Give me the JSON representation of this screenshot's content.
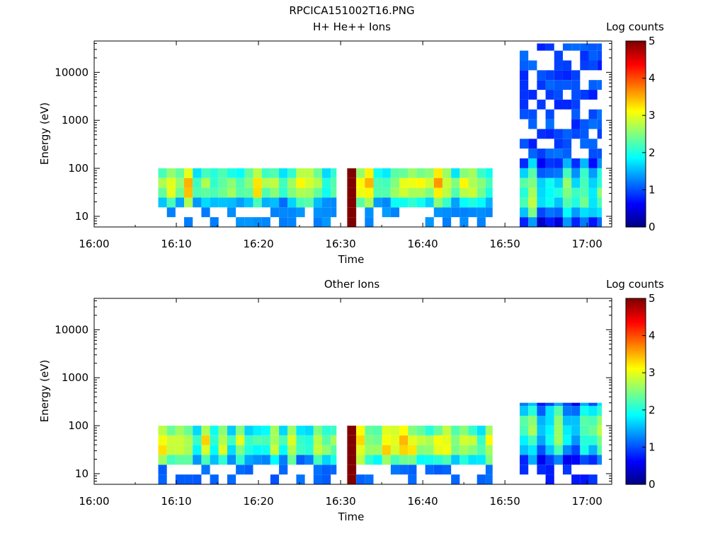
{
  "figure_title": "RPCICA151002T16.PNG",
  "chart_data": [
    {
      "type": "heatmap",
      "title": "H+ He++ Ions",
      "xlabel": "Time",
      "ylabel": "Energy (eV)",
      "x_ticks": [
        "16:00",
        "16:10",
        "16:20",
        "16:30",
        "16:40",
        "16:50",
        "17:00"
      ],
      "x_range_minutes": [
        0,
        63
      ],
      "y_scale": "log",
      "y_ticks": [
        "10",
        "100",
        "1000",
        "10000"
      ],
      "ylim": [
        6,
        45000
      ],
      "colorbar": {
        "label": "Log counts",
        "ticks": [
          "0",
          "1",
          "2",
          "3",
          "4",
          "5"
        ],
        "range": [
          0,
          5
        ],
        "colormap": "jet"
      },
      "segments": [
        {
          "t_start": 7.8,
          "t_end": 29.5,
          "e_low": 6,
          "e_high": 100,
          "e_min_solid": 13,
          "level": 2.8,
          "sparse_levels": 1
        },
        {
          "t_start": 30.8,
          "t_end": 31.9,
          "e_low": 6,
          "e_high": 100,
          "level": 5.0,
          "saturated": true
        },
        {
          "t_start": 31.9,
          "t_end": 48.5,
          "e_low": 6,
          "e_high": 100,
          "e_min_solid": 13,
          "level": 2.9,
          "sparse_levels": 1
        },
        {
          "t_start": 51.8,
          "t_end": 61.8,
          "e_low": 6,
          "e_high": 40000,
          "e_max_dense": 110,
          "level": 2.3,
          "sparse_levels": 0.5
        }
      ]
    },
    {
      "type": "heatmap",
      "title": "Other Ions",
      "xlabel": "Time",
      "ylabel": "Energy (eV)",
      "x_ticks": [
        "16:00",
        "16:10",
        "16:20",
        "16:30",
        "16:40",
        "16:50",
        "17:00"
      ],
      "x_range_minutes": [
        0,
        63
      ],
      "y_scale": "log",
      "y_ticks": [
        "10",
        "100",
        "1000",
        "10000"
      ],
      "ylim": [
        6,
        45000
      ],
      "colorbar": {
        "label": "Log counts",
        "ticks": [
          "0",
          "1",
          "2",
          "3",
          "4",
          "5"
        ],
        "range": [
          0,
          5
        ],
        "colormap": "jet"
      },
      "segments": [
        {
          "t_start": 7.8,
          "t_end": 29.5,
          "e_low": 6,
          "e_high": 100,
          "e_min_solid": 12,
          "level": 2.6,
          "sparse_levels": 0.8
        },
        {
          "t_start": 30.8,
          "t_end": 31.9,
          "e_low": 6,
          "e_high": 100,
          "level": 5.0,
          "saturated": true
        },
        {
          "t_start": 31.9,
          "t_end": 48.5,
          "e_low": 6,
          "e_high": 100,
          "e_min_solid": 12,
          "level": 2.9,
          "sparse_levels": 0.8
        },
        {
          "t_start": 51.8,
          "t_end": 61.8,
          "e_low": 6,
          "e_high": 300,
          "e_min_solid": 15,
          "level": 2.2,
          "sparse_levels": 0.5
        }
      ]
    }
  ]
}
